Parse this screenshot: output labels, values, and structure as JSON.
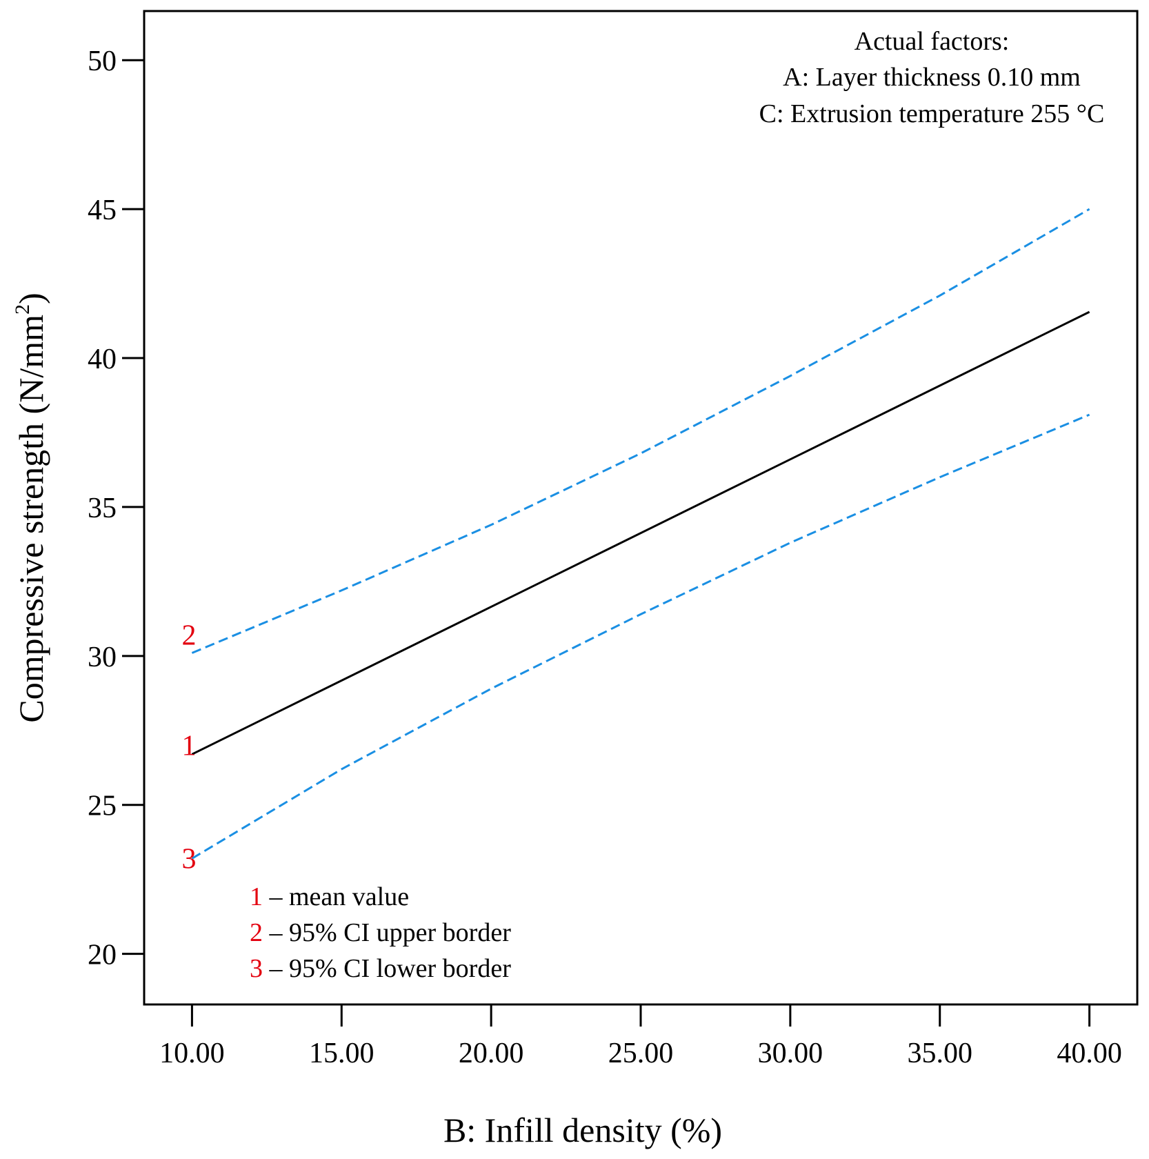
{
  "chart_data": {
    "type": "line",
    "xlabel": "B: Infill density (%)",
    "ylabel": "Compressive strength (N/mm",
    "ylabel_superscript": "2",
    "ylabel_close": ")",
    "xlim": [
      8.4,
      41.6
    ],
    "ylim": [
      18.3,
      51.65
    ],
    "x_ticks": [
      10,
      15,
      20,
      25,
      30,
      35,
      40
    ],
    "x_tick_labels": [
      "10.00",
      "15.00",
      "20.00",
      "25.00",
      "30.00",
      "35.00",
      "40.00"
    ],
    "y_ticks": [
      20,
      25,
      30,
      35,
      40,
      45,
      50
    ],
    "y_tick_labels": [
      "20",
      "25",
      "30",
      "35",
      "40",
      "45",
      "50"
    ],
    "grid": false,
    "series": [
      {
        "name": "mean value",
        "number": "1",
        "style": "solid",
        "color": "#000000",
        "x": [
          10,
          40
        ],
        "y": [
          26.7,
          41.55
        ]
      },
      {
        "name": "95% CI upper border",
        "number": "2",
        "style": "dashed",
        "color": "#1a8fe3",
        "x": [
          10,
          15,
          20,
          25,
          30,
          35,
          40
        ],
        "y": [
          30.1,
          32.2,
          34.4,
          36.8,
          39.4,
          42.1,
          45.0
        ]
      },
      {
        "name": "95% CI lower border",
        "number": "3",
        "style": "dashed",
        "color": "#1a8fe3",
        "x": [
          10,
          15,
          20,
          25,
          30,
          35,
          40
        ],
        "y": [
          23.2,
          26.2,
          28.9,
          31.4,
          33.8,
          36.0,
          38.1
        ]
      }
    ],
    "line_markers": [
      {
        "number": "1",
        "x": 9.9,
        "y": 27.0
      },
      {
        "number": "2",
        "x": 9.9,
        "y": 30.7
      },
      {
        "number": "3",
        "x": 9.9,
        "y": 23.2
      }
    ],
    "annotation": {
      "lines": [
        "Actual factors:",
        "A: Layer thickness 0.10 mm",
        "C: Extrusion temperature 255 °C"
      ]
    },
    "legend": {
      "placement": "bottom-left",
      "entries": [
        {
          "number": "1",
          "text": " – mean value"
        },
        {
          "number": "2",
          "text": " – 95% CI upper border"
        },
        {
          "number": "3",
          "text": " – 95% CI lower border"
        }
      ]
    },
    "colors": {
      "mean": "#000000",
      "ci": "#1a8fe3",
      "markers": "#e3000f"
    }
  }
}
